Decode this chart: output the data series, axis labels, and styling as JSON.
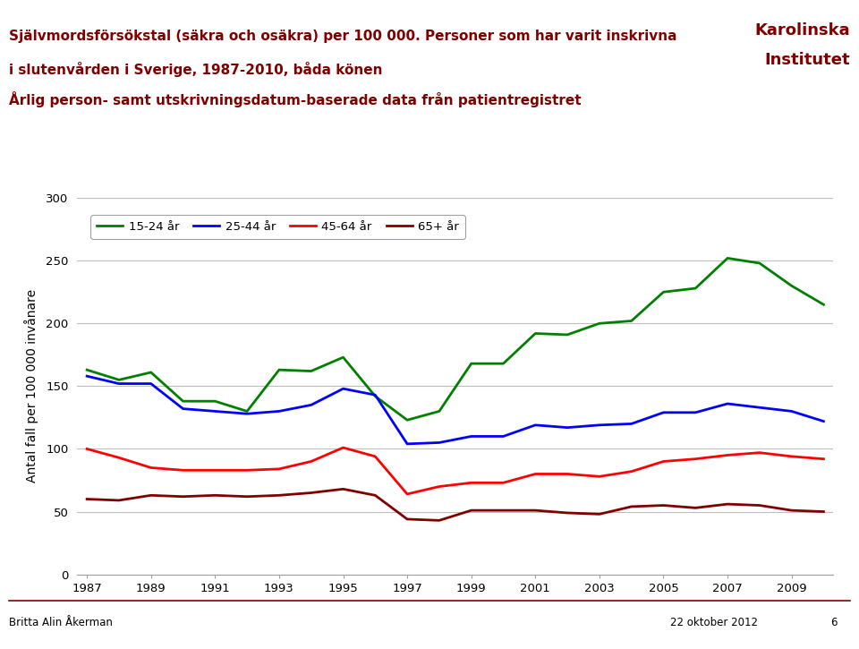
{
  "years": [
    1987,
    1988,
    1989,
    1990,
    1991,
    1992,
    1993,
    1994,
    1995,
    1996,
    1997,
    1998,
    1999,
    2000,
    2001,
    2002,
    2003,
    2004,
    2005,
    2006,
    2007,
    2008,
    2009,
    2010
  ],
  "series": {
    "15-24 år": {
      "color": "#008000",
      "values": [
        163,
        155,
        161,
        138,
        138,
        130,
        163,
        162,
        173,
        142,
        123,
        130,
        168,
        168,
        192,
        191,
        200,
        202,
        225,
        228,
        252,
        248,
        230,
        215
      ]
    },
    "25-44 år": {
      "color": "#0000FF",
      "values": [
        158,
        152,
        152,
        132,
        130,
        128,
        130,
        135,
        148,
        143,
        104,
        105,
        110,
        110,
        119,
        117,
        119,
        120,
        129,
        129,
        136,
        133,
        130,
        122
      ]
    },
    "45-64 år": {
      "color": "#FF0000",
      "values": [
        100,
        93,
        85,
        83,
        83,
        83,
        84,
        90,
        101,
        94,
        64,
        70,
        73,
        73,
        80,
        80,
        78,
        82,
        90,
        92,
        95,
        97,
        94,
        92
      ]
    },
    "65+ år": {
      "color": "#800000",
      "values": [
        60,
        59,
        63,
        62,
        63,
        62,
        63,
        65,
        68,
        63,
        44,
        43,
        51,
        51,
        51,
        49,
        48,
        54,
        55,
        53,
        56,
        55,
        51,
        50
      ]
    }
  },
  "ylabel": "Antal fall per 100 000 invånare",
  "ylim": [
    0,
    300
  ],
  "yticks": [
    0,
    50,
    100,
    150,
    200,
    250,
    300
  ],
  "xlim": [
    1987,
    2010
  ],
  "xticks": [
    1987,
    1989,
    1991,
    1993,
    1995,
    1997,
    1999,
    2001,
    2003,
    2005,
    2007,
    2009
  ],
  "title_line1": "Självmordsförsökstal (säkra och osäkra) per 100 000. Personer som har varit inskrivna",
  "title_line2": "i slutenvården i Sverige, 1987-2010, båda könen",
  "title_line3": "Årlig person- samt utskrivningsdatum-baserade data från patientregistret",
  "footer_left": "Britta Alin Åkerman",
  "footer_right": "22 oktober 2012",
  "footer_page": "6",
  "background_color": "#FFFFFF",
  "plot_bg_color": "#FFFFFF",
  "grid_color": "#BEBEBE",
  "title_color": "#800000",
  "line_width": 2.0,
  "legend_border_color": "#A0A0A0",
  "axis_line_color": "#A0A0A0",
  "footer_line_color": "#800000"
}
